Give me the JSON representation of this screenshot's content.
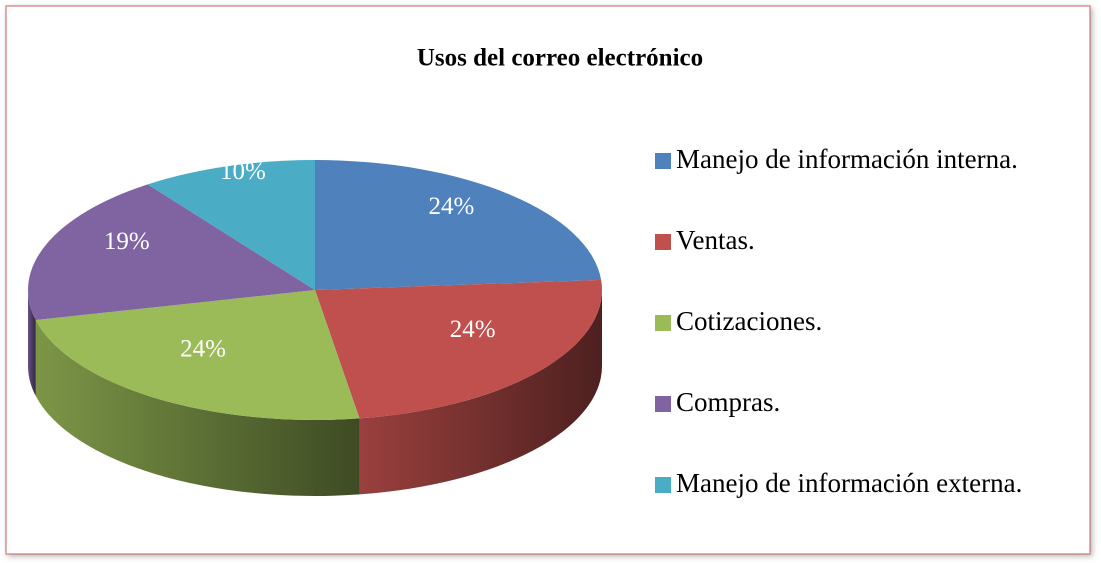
{
  "chart_data": {
    "type": "pie",
    "title": "Usos del correo electrónico",
    "categories": [
      "Manejo de información interna.",
      "Ventas.",
      "Cotizaciones.",
      "Compras.",
      "Manejo de información externa."
    ],
    "values": [
      24,
      24,
      24,
      19,
      10
    ],
    "value_labels": [
      "24%",
      "24%",
      "24%",
      "19%",
      "10%"
    ],
    "colors": [
      "#4f81bd",
      "#c0504d",
      "#9bbb59",
      "#8064a2",
      "#4bacc6"
    ],
    "legend": "right"
  }
}
